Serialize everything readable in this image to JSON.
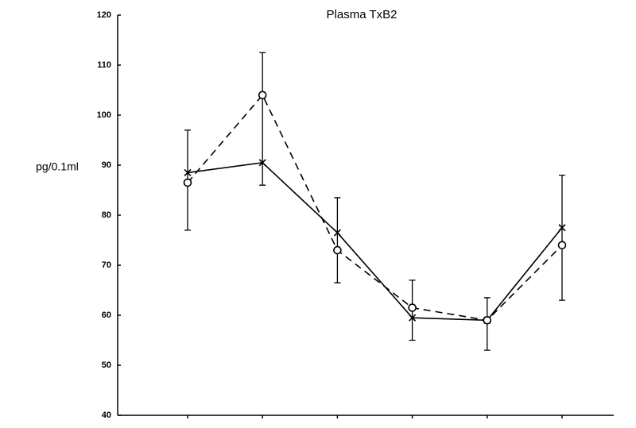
{
  "chart_data": {
    "type": "line",
    "title": "Plasma TxB2",
    "ylabel": "pg/0.1ml",
    "categories": [
      null,
      null,
      null,
      null,
      null,
      null
    ],
    "ylim": [
      40,
      120
    ],
    "yticks": [
      40,
      50,
      60,
      70,
      80,
      90,
      100,
      110,
      120
    ],
    "series": [
      {
        "color": "#000000",
        "dash": false,
        "marker": "x",
        "values": [
          88.5,
          90.5,
          76.5,
          59.5,
          59,
          77.5
        ]
      },
      {
        "color": "#000000",
        "dash": true,
        "marker": "circle",
        "values": [
          86.5,
          104,
          73,
          61.5,
          59,
          74
        ]
      }
    ],
    "error_bars": {
      "upper": [
        97,
        112.5,
        83.5,
        67,
        63.5,
        88
      ],
      "lower": [
        77,
        86,
        66.5,
        55,
        53,
        63
      ]
    }
  }
}
